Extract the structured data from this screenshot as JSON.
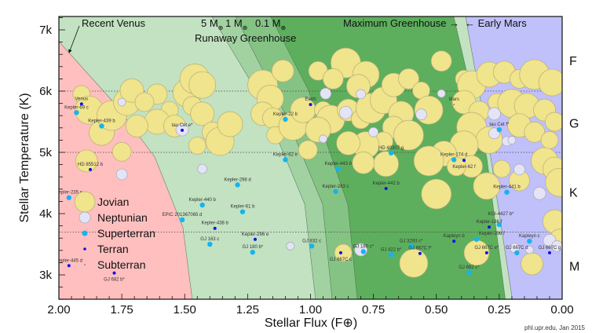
{
  "chart_data": {
    "type": "scatter",
    "title": "",
    "xlabel": "Stellar Flux (F⊕)",
    "ylabel": "Stellar Temperature (K)",
    "xlim": [
      2.0,
      0.0
    ],
    "ylim": [
      2600,
      7220
    ],
    "grid": false,
    "xticks": [
      {
        "value": 2.0,
        "label": "2.00"
      },
      {
        "value": 1.75,
        "label": "1.75"
      },
      {
        "value": 1.5,
        "label": "1.50"
      },
      {
        "value": 1.25,
        "label": "1.25"
      },
      {
        "value": 1.0,
        "label": "1.00"
      },
      {
        "value": 0.75,
        "label": "0.75"
      },
      {
        "value": 0.5,
        "label": "0.50"
      },
      {
        "value": 0.25,
        "label": "0.25"
      },
      {
        "value": 0.0,
        "label": "0.00"
      }
    ],
    "yticks": [
      {
        "value": 7000,
        "label": "7k"
      },
      {
        "value": 6000,
        "label": "6k"
      },
      {
        "value": 5000,
        "label": "5k"
      },
      {
        "value": 4000,
        "label": "4k"
      },
      {
        "value": 3000,
        "label": "3k"
      }
    ],
    "spectral_class_dividers": [
      6000,
      5000,
      3700
    ],
    "spectral_classes": [
      {
        "label": "F",
        "T": 6500
      },
      {
        "label": "G",
        "T": 5480
      },
      {
        "label": "K",
        "T": 4350
      },
      {
        "label": "M",
        "T": 3150
      }
    ],
    "regions": [
      {
        "name": "Recent Venus",
        "color": "#ffbfbf",
        "boundary": [
          [
            2.05,
            7218
          ],
          [
            1.994,
            6782
          ],
          [
            1.775,
            5782
          ],
          [
            1.619,
            4923
          ],
          [
            1.507,
            3769
          ],
          [
            1.47,
            2600
          ]
        ]
      },
      {
        "name": "5 M⊕ Runaway Greenhouse",
        "color": "#a2d2a2",
        "boundary": [
          [
            1.392,
            7218
          ],
          [
            1.198,
            5885
          ],
          [
            1.023,
            4154
          ],
          [
            0.98,
            2600
          ]
        ]
      },
      {
        "name": "1 M⊕ Runaway Greenhouse",
        "color": "#84c384",
        "boundary": [
          [
            1.298,
            7218
          ],
          [
            1.101,
            5628
          ],
          [
            0.952,
            4154
          ],
          [
            0.914,
            2600
          ]
        ]
      },
      {
        "name": "0.1 M⊕ Runaway Greenhouse",
        "color": "#5daf5d",
        "boundary": [
          [
            1.158,
            7218
          ],
          [
            1.008,
            6013
          ],
          [
            0.852,
            4154
          ],
          [
            0.814,
            2600
          ]
        ]
      },
      {
        "name": "Maximum Greenhouse",
        "color": "#c2e2c2",
        "boundary": [
          [
            0.431,
            7218
          ],
          [
            0.3,
            4923
          ],
          [
            0.226,
            2600
          ]
        ]
      },
      {
        "name": "Early Mars",
        "color": "#c0c0fa",
        "boundary": [
          [
            0.384,
            7218
          ],
          [
            0.284,
            4923
          ],
          [
            0.198,
            2600
          ]
        ]
      }
    ],
    "base_color": "#c2e2c2",
    "annotations": {
      "recent_venus": "Recent Venus",
      "mass_5": "5 M",
      "mass_1": "1 M",
      "mass_01": "0.1 M",
      "earth_symbol": "⊕",
      "runaway": "Runaway Greenhouse",
      "max_greenhouse": "Maximum Greenhouse →",
      "early_mars": "← Early Mars"
    },
    "legend": [
      {
        "type": "jovian",
        "label": "Jovian"
      },
      {
        "type": "neptunian",
        "label": "Neptunian"
      },
      {
        "type": "superterran",
        "label": "Superterran"
      },
      {
        "type": "terran",
        "label": "Terran"
      },
      {
        "type": "subterran",
        "label": "Subterran"
      }
    ],
    "type_colors": {
      "jovian": "#f0e48c",
      "neptunian": "#e4e4f6",
      "superterran": "#14b4f0",
      "terran": "#0a14e6",
      "subterran": "#7a5a40"
    },
    "planets": [
      {
        "name": "Venus",
        "type": "terran",
        "flux": 1.91,
        "T": 5790
      },
      {
        "name": "Kepler-69 c",
        "type": "superterran",
        "flux": 1.93,
        "T": 5650
      },
      {
        "name": "Kepler-439 b",
        "type": "superterran",
        "flux": 1.83,
        "T": 5430
      },
      {
        "name": "HD 85512 b",
        "type": "terran",
        "flux": 1.875,
        "T": 4720
      },
      {
        "name": "tau Cet e*",
        "type": "terran",
        "flux": 1.51,
        "T": 5360
      },
      {
        "name": "Kepler-22 b",
        "type": "superterran",
        "flux": 1.1,
        "T": 5540
      },
      {
        "name": "Kepler-62 e",
        "type": "superterran",
        "flux": 1.1,
        "T": 4880
      },
      {
        "name": "Kepler-298 d",
        "type": "superterran",
        "flux": 1.29,
        "T": 4470
      },
      {
        "name": "Kepler-440 b",
        "type": "superterran",
        "flux": 1.43,
        "T": 4140
      },
      {
        "name": "Kepler-61 b",
        "type": "superterran",
        "flux": 1.27,
        "T": 4030
      },
      {
        "name": "EPIC 201367065 d",
        "type": "superterran",
        "flux": 1.51,
        "T": 3900
      },
      {
        "name": "Kepler-438 b",
        "type": "terran",
        "flux": 1.38,
        "T": 3760
      },
      {
        "name": "Kepler-296 e",
        "type": "terran",
        "flux": 1.22,
        "T": 3580
      },
      {
        "name": "GJ 163 c",
        "type": "superterran",
        "flux": 1.4,
        "T": 3500
      },
      {
        "name": "GJ 180 b*",
        "type": "superterran",
        "flux": 1.23,
        "T": 3370
      },
      {
        "name": "Kepler-235 e",
        "type": "superterran",
        "flux": 1.96,
        "T": 4260
      },
      {
        "name": "Kepler-445 d",
        "type": "terran",
        "flux": 1.96,
        "T": 3150
      },
      {
        "name": "GJ 682 b*",
        "type": "terran",
        "flux": 1.78,
        "T": 3030
      },
      {
        "name": "Earth",
        "type": "terran",
        "flux": 1.0,
        "T": 5780
      },
      {
        "name": "Mars",
        "type": "subterran",
        "flux": 0.43,
        "T": 5780
      },
      {
        "name": "GJ 832 c",
        "type": "superterran",
        "flux": 0.995,
        "T": 3470
      },
      {
        "name": "GJ 667C c",
        "type": "terran",
        "flux": 0.88,
        "T": 3360
      },
      {
        "name": "GJ 180 c*",
        "type": "superterran",
        "flux": 0.79,
        "T": 3380
      },
      {
        "name": "GJ 422 b*",
        "type": "superterran",
        "flux": 0.68,
        "T": 3330
      },
      {
        "name": "GJ 3293 c*",
        "type": "superterran",
        "flux": 0.6,
        "T": 3470
      },
      {
        "name": "GJ 667C f*",
        "type": "terran",
        "flux": 0.565,
        "T": 3350
      },
      {
        "name": "HD 40307 g",
        "type": "superterran",
        "flux": 0.68,
        "T": 4990
      },
      {
        "name": "Kepler-443 b",
        "type": "superterran",
        "flux": 0.89,
        "T": 4730
      },
      {
        "name": "Kepler-283 c",
        "type": "superterran",
        "flux": 0.9,
        "T": 4360
      },
      {
        "name": "Kepler-442 b",
        "type": "terran",
        "flux": 0.7,
        "T": 4410
      },
      {
        "name": "Kepler-174 d",
        "type": "superterran",
        "flux": 0.43,
        "T": 4880
      },
      {
        "name": "Kepler-62 f",
        "type": "terran",
        "flux": 0.39,
        "T": 4870
      },
      {
        "name": "Kepler-441 b",
        "type": "superterran",
        "flux": 0.22,
        "T": 4350
      },
      {
        "name": "KOI-4427 b*",
        "type": "superterran",
        "flux": 0.25,
        "T": 3820
      },
      {
        "name": "Kepler-186 f",
        "type": "terran",
        "flux": 0.29,
        "T": 3780
      },
      {
        "name": "Kapteyn b",
        "type": "terran",
        "flux": 0.43,
        "T": 3550
      },
      {
        "name": "Kepler-296 f",
        "type": "superterran",
        "flux": 0.34,
        "T": 3580
      },
      {
        "name": "GJ 667C e*",
        "type": "terran",
        "flux": 0.3,
        "T": 3360
      },
      {
        "name": "GJ 682 c*",
        "type": "superterran",
        "flux": 0.37,
        "T": 3040
      },
      {
        "name": "Kapteyn c",
        "type": "superterran",
        "flux": 0.13,
        "T": 3550
      },
      {
        "name": "GJ 667C d",
        "type": "superterran",
        "flux": 0.18,
        "T": 3360
      },
      {
        "name": "GJ 667C g",
        "type": "terran",
        "flux": 0.05,
        "T": 3360
      },
      {
        "name": "tau Cet f*",
        "type": "superterran",
        "flux": 0.25,
        "T": 5370
      }
    ],
    "jovian_bubbles": [
      [
        1.91,
        5950
      ],
      [
        1.88,
        5690
      ],
      [
        1.83,
        5320
      ],
      [
        1.89,
        4860
      ],
      [
        1.75,
        5010
      ],
      [
        1.79,
        5600
      ],
      [
        1.73,
        5820
      ],
      [
        1.71,
        6010
      ],
      [
        1.61,
        5950
      ],
      [
        1.56,
        5690
      ],
      [
        1.49,
        5970
      ],
      [
        1.61,
        5500
      ],
      [
        1.54,
        5430
      ],
      [
        1.47,
        5760
      ],
      [
        1.46,
        6200
      ],
      [
        1.43,
        6100
      ],
      [
        1.43,
        5630
      ],
      [
        1.39,
        5330
      ],
      [
        1.45,
        5110
      ],
      [
        1.36,
        5180
      ],
      [
        1.32,
        5460
      ],
      [
        1.69,
        5430
      ],
      [
        1.66,
        5820
      ],
      [
        1.19,
        6100
      ],
      [
        1.16,
        5880
      ],
      [
        1.19,
        5630
      ],
      [
        1.15,
        5560
      ],
      [
        1.14,
        5280
      ],
      [
        1.07,
        5430
      ],
      [
        1.03,
        5690
      ],
      [
        1.11,
        6330
      ],
      [
        0.97,
        6330
      ],
      [
        0.86,
        6460
      ],
      [
        0.78,
        6270
      ],
      [
        0.81,
        6080
      ],
      [
        0.91,
        6200
      ],
      [
        0.95,
        5690
      ],
      [
        0.92,
        5540
      ],
      [
        0.97,
        5370
      ],
      [
        0.85,
        5690
      ],
      [
        0.8,
        5540
      ],
      [
        0.76,
        5720
      ],
      [
        0.71,
        5850
      ],
      [
        0.67,
        6100
      ],
      [
        0.61,
        6200
      ],
      [
        0.56,
        6010
      ],
      [
        0.53,
        5690
      ],
      [
        0.64,
        5630
      ],
      [
        0.67,
        5410
      ],
      [
        0.71,
        5180
      ],
      [
        0.61,
        5280
      ],
      [
        0.78,
        5120
      ],
      [
        0.85,
        5150
      ],
      [
        0.48,
        6490
      ],
      [
        0.39,
        6200
      ],
      [
        0.36,
        6100
      ],
      [
        0.29,
        6270
      ],
      [
        0.23,
        6310
      ],
      [
        0.17,
        6200
      ],
      [
        0.11,
        6270
      ],
      [
        0.04,
        6140
      ],
      [
        0.39,
        5820
      ],
      [
        0.33,
        5670
      ],
      [
        0.26,
        5820
      ],
      [
        0.2,
        5800
      ],
      [
        0.14,
        5760
      ],
      [
        0.07,
        5690
      ],
      [
        0.03,
        5500
      ],
      [
        0.36,
        5410
      ],
      [
        0.29,
        5200
      ],
      [
        0.17,
        5440
      ],
      [
        0.11,
        5330
      ],
      [
        0.05,
        5200
      ],
      [
        0.39,
        5120
      ],
      [
        0.47,
        4980
      ],
      [
        0.36,
        4770
      ],
      [
        0.42,
        4770
      ],
      [
        0.53,
        4860
      ],
      [
        0.07,
        4860
      ],
      [
        0.03,
        4730
      ],
      [
        0.17,
        4540
      ],
      [
        0.24,
        4730
      ],
      [
        0.01,
        4510
      ],
      [
        0.7,
        4810
      ],
      [
        0.79,
        4830
      ],
      [
        1.01,
        5040
      ],
      [
        0.5,
        4320
      ],
      [
        0.3,
        4450
      ],
      [
        0.03,
        3870
      ],
      [
        0.01,
        3580
      ],
      [
        0.87,
        3360
      ],
      [
        0.59,
        3190
      ],
      [
        0.34,
        3360
      ],
      [
        0.12,
        3180
      ]
    ],
    "neptunian_bubbles": [
      [
        1.75,
        5820
      ],
      [
        1.51,
        5370
      ],
      [
        1.75,
        4640
      ],
      [
        1.43,
        4730
      ],
      [
        1.08,
        3470
      ],
      [
        0.8,
        3410
      ],
      [
        0.94,
        5960
      ],
      [
        0.8,
        5950
      ],
      [
        0.48,
        5960
      ],
      [
        0.86,
        5650
      ],
      [
        0.56,
        5620
      ],
      [
        0.75,
        5330
      ],
      [
        0.95,
        5220
      ],
      [
        0.27,
        5630
      ],
      [
        0.27,
        5310
      ],
      [
        0.22,
        5180
      ],
      [
        0.2,
        5200
      ],
      [
        0.09,
        4330
      ],
      [
        0.17,
        4720
      ],
      [
        0.19,
        3440
      ],
      [
        0.13,
        3410
      ],
      [
        0.05,
        3560
      ],
      [
        0.02,
        3470
      ]
    ],
    "credit": "phl.upr.edu, Jan 2015"
  }
}
